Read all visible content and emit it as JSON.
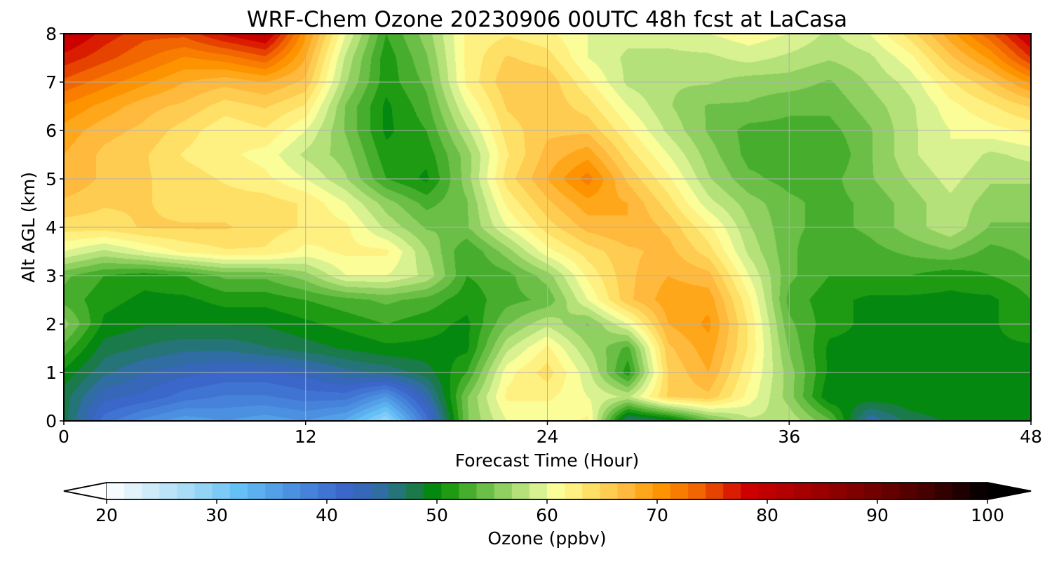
{
  "chart_data": {
    "type": "heatmap",
    "title": "WRF-Chem Ozone  20230906 00UTC 48h fcst at LaCasa",
    "xlabel": "Forecast Time (Hour)",
    "ylabel": "Alt AGL (km)",
    "xlim": [
      0,
      48
    ],
    "ylim": [
      0,
      8
    ],
    "x_ticks": [
      "0",
      "12",
      "24",
      "36",
      "48"
    ],
    "x_tick_values": [
      0,
      12,
      24,
      36,
      48
    ],
    "y_ticks": [
      "0",
      "1",
      "2",
      "3",
      "4",
      "5",
      "6",
      "7",
      "8"
    ],
    "y_tick_values": [
      0,
      1,
      2,
      3,
      4,
      5,
      6,
      7,
      8
    ],
    "grid": true,
    "x_hours": [
      0,
      2,
      4,
      6,
      8,
      10,
      12,
      14,
      16,
      18,
      20,
      22,
      24,
      26,
      28,
      30,
      32,
      34,
      36,
      38,
      40,
      42,
      44,
      46,
      48
    ],
    "y_km": [
      0,
      0.5,
      1,
      1.5,
      2,
      2.5,
      3,
      3.5,
      4,
      4.5,
      5,
      5.5,
      6,
      6.5,
      7,
      7.5,
      8
    ],
    "ozone_ppbv": [
      [
        48,
        40,
        37,
        35,
        36,
        35,
        36,
        34,
        28,
        40,
        55,
        60,
        60,
        62,
        46,
        48,
        54,
        58,
        58,
        54,
        44,
        48,
        49,
        49,
        50
      ],
      [
        48,
        43,
        42,
        40,
        39,
        39,
        40,
        40,
        36,
        44,
        55,
        62,
        62,
        60,
        58,
        65,
        66,
        61,
        56,
        49,
        50,
        50,
        50,
        50,
        50
      ],
      [
        50,
        46,
        44,
        43,
        42,
        42,
        43,
        45,
        46,
        48,
        52,
        61,
        64,
        59,
        51,
        65,
        68,
        62,
        56,
        50,
        50,
        50,
        50,
        50,
        50
      ],
      [
        53,
        48,
        47,
        46,
        46,
        47,
        48,
        49,
        50,
        50,
        50,
        58,
        62,
        57,
        53,
        66,
        69,
        63,
        55,
        50,
        50,
        50,
        50,
        50,
        50
      ],
      [
        56,
        50,
        49,
        49,
        49,
        49,
        50,
        51,
        52,
        51,
        50,
        55,
        58,
        55,
        60,
        68,
        70,
        63,
        54,
        51,
        50,
        50,
        50,
        50,
        52
      ],
      [
        53,
        51,
        50,
        50,
        51,
        51,
        52,
        53,
        54,
        53,
        51,
        53,
        54,
        60,
        66,
        69,
        69,
        62,
        53,
        51,
        50,
        50,
        50,
        50,
        52
      ],
      [
        54,
        52,
        51,
        52,
        54,
        54,
        56,
        60,
        60,
        58,
        52,
        53,
        56,
        62,
        66,
        68,
        67,
        60,
        54,
        52,
        52,
        52,
        51,
        52,
        53
      ],
      [
        60,
        58,
        60,
        62,
        63,
        63,
        61,
        62,
        62,
        57,
        52,
        56,
        61,
        64,
        66,
        67,
        64,
        58,
        54,
        52,
        53,
        54,
        55,
        53,
        54
      ],
      [
        64,
        64,
        65,
        65,
        65,
        64,
        63,
        62,
        58,
        55,
        55,
        60,
        64,
        67,
        68,
        66,
        62,
        57,
        54,
        53,
        54,
        56,
        58,
        55,
        55
      ],
      [
        66,
        65,
        65,
        64,
        64,
        64,
        63,
        60,
        56,
        53,
        55,
        62,
        66,
        69,
        68,
        64,
        59,
        56,
        54,
        53,
        54,
        56,
        58,
        56,
        56
      ],
      [
        68,
        66,
        65,
        64,
        63,
        62,
        60,
        57,
        52,
        50,
        56,
        64,
        68,
        72,
        66,
        62,
        57,
        54,
        53,
        53,
        55,
        57,
        59,
        57,
        57
      ],
      [
        68,
        66,
        65,
        63,
        62,
        61,
        58,
        56,
        51,
        51,
        56,
        63,
        67,
        69,
        64,
        60,
        56,
        53,
        53,
        52,
        55,
        58,
        60,
        58,
        59
      ],
      [
        69,
        67,
        66,
        64,
        62,
        63,
        60,
        55,
        50,
        52,
        58,
        64,
        66,
        66,
        62,
        58,
        55,
        53,
        53,
        53,
        55,
        58,
        60,
        61,
        62
      ],
      [
        71,
        69,
        67,
        66,
        64,
        65,
        63,
        55,
        50,
        53,
        60,
        65,
        66,
        64,
        60,
        57,
        55,
        55,
        54,
        54,
        56,
        58,
        61,
        63,
        65
      ],
      [
        74,
        72,
        70,
        68,
        67,
        68,
        66,
        57,
        51,
        54,
        62,
        66,
        66,
        62,
        58,
        57,
        57,
        56,
        56,
        55,
        57,
        59,
        63,
        66,
        70
      ],
      [
        77,
        75,
        73,
        71,
        72,
        74,
        68,
        58,
        51,
        55,
        62,
        65,
        64,
        60,
        58,
        58,
        58,
        59,
        58,
        57,
        58,
        61,
        66,
        70,
        76
      ],
      [
        80,
        77,
        75,
        75,
        78,
        80,
        70,
        60,
        52,
        56,
        62,
        63,
        62,
        60,
        59,
        59,
        60,
        61,
        60,
        58,
        60,
        64,
        69,
        74,
        80
      ]
    ],
    "colorbar": {
      "label": "Ozone  (ppbv)",
      "ticks": [
        "20",
        "30",
        "40",
        "50",
        "60",
        "70",
        "80",
        "90",
        "100"
      ],
      "tick_values": [
        20,
        30,
        40,
        50,
        60,
        70,
        80,
        90,
        100
      ],
      "range": [
        20,
        100
      ],
      "extend": "both",
      "color_stops": [
        {
          "v": 20,
          "c": "#ffffff"
        },
        {
          "v": 28,
          "c": "#9fd8f5"
        },
        {
          "v": 32,
          "c": "#64c0f5"
        },
        {
          "v": 37,
          "c": "#4a8ee0"
        },
        {
          "v": 42,
          "c": "#3a63c8"
        },
        {
          "v": 45,
          "c": "#2f6e9f"
        },
        {
          "v": 48,
          "c": "#1a7a4a"
        },
        {
          "v": 50,
          "c": "#008c00"
        },
        {
          "v": 53,
          "c": "#4cb030"
        },
        {
          "v": 56,
          "c": "#8fd060"
        },
        {
          "v": 59,
          "c": "#d5f090"
        },
        {
          "v": 61,
          "c": "#ffff99"
        },
        {
          "v": 64,
          "c": "#ffe066"
        },
        {
          "v": 67,
          "c": "#ffbb40"
        },
        {
          "v": 70,
          "c": "#ff9900"
        },
        {
          "v": 74,
          "c": "#f06000"
        },
        {
          "v": 78,
          "c": "#d00000"
        },
        {
          "v": 84,
          "c": "#a00000"
        },
        {
          "v": 90,
          "c": "#700000"
        },
        {
          "v": 95,
          "c": "#400000"
        },
        {
          "v": 100,
          "c": "#000000"
        }
      ],
      "under_color": "#ffffff",
      "over_color": "#000000"
    }
  }
}
